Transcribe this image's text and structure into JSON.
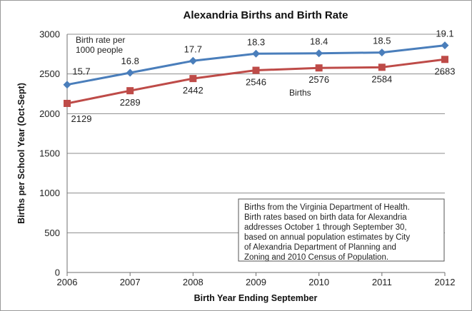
{
  "chart_data": {
    "type": "line",
    "title": "Alexandria Births and Birth Rate",
    "xlabel": "Birth Year Ending September",
    "ylabel": "Births per School Year (Oct-Sept)",
    "x": [
      "2006",
      "2007",
      "2008",
      "2009",
      "2010",
      "2011",
      "2012"
    ],
    "y_ticks": [
      "0",
      "500",
      "1000",
      "1500",
      "2000",
      "2500",
      "3000"
    ],
    "ylim": [
      0,
      3000
    ],
    "grid": "horizontal",
    "series": [
      {
        "name": "Birth rate per 1000 people",
        "color": "#4a7ebb",
        "marker": "diamond",
        "plotted_values": [
          2365,
          2515,
          2665,
          2755,
          2760,
          2770,
          2860
        ],
        "labels": [
          "15.7",
          "16.8",
          "17.7",
          "18.3",
          "18.4",
          "18.5",
          "19.1"
        ]
      },
      {
        "name": "Births",
        "color": "#be4b48",
        "marker": "square",
        "values": [
          2129,
          2289,
          2442,
          2546,
          2576,
          2584,
          2683
        ],
        "labels": [
          "2129",
          "2289",
          "2442",
          "2546",
          "2576",
          "2584",
          "2683"
        ]
      }
    ],
    "annotations": {
      "rate_label": [
        "Birth rate per",
        "1000 people"
      ],
      "births_label": "Births",
      "note": [
        "Births from the Virginia Department of Health.",
        "Birth rates based on birth data for Alexandria",
        "addresses October 1 through September 30,",
        "based on annual population estimates by City",
        "of Alexandria Department of Planning and",
        "Zoning and 2010 Census of Population."
      ]
    }
  }
}
